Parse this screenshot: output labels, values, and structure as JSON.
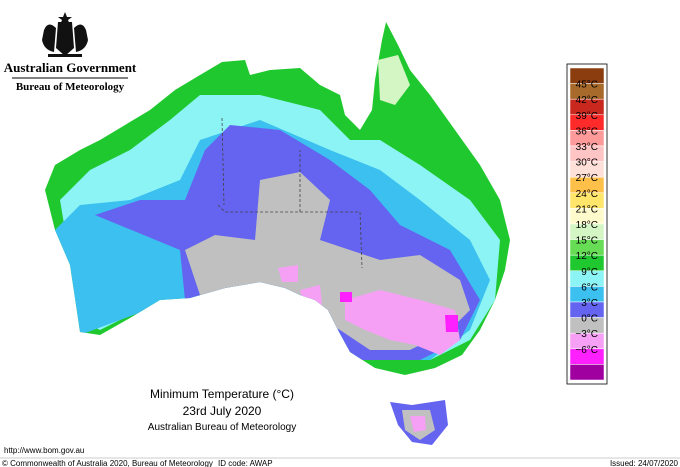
{
  "header": {
    "government": "Australian Government",
    "agency": "Bureau of Meteorology"
  },
  "map": {
    "title": "Minimum Temperature (°C)",
    "date": "23rd July 2020",
    "source": "Australian Bureau of Meteorology"
  },
  "legend": {
    "colors": [
      "#8c3d0f",
      "#a86a2a",
      "#c8281e",
      "#ff2a2a",
      "#ff9a9a",
      "#ffc4c4",
      "#ffe0d8",
      "#ffc04a",
      "#ffe66a",
      "#fffacc",
      "#d4f5c4",
      "#66dd55",
      "#20c830",
      "#8cf4f4",
      "#3cc0f0",
      "#6464f0",
      "#c0c0c0",
      "#f5a0f5",
      "#ff20ff",
      "#a000a0"
    ],
    "labels": [
      "45°C",
      "42°C",
      "39°C",
      "36°C",
      "33°C",
      "30°C",
      "27°C",
      "24°C",
      "21°C",
      "18°C",
      "15°C",
      "12°C",
      "9°C",
      "6°C",
      "3°C",
      "0°C",
      "−3°C",
      "−6°C"
    ]
  },
  "footer": {
    "url": "http://www.bom.gov.au",
    "copyright": "© Commonwealth of Australia 2020, Bureau of Meteorology",
    "id_code": "ID code: AWAP",
    "issued": "Issued: 24/07/2020"
  }
}
